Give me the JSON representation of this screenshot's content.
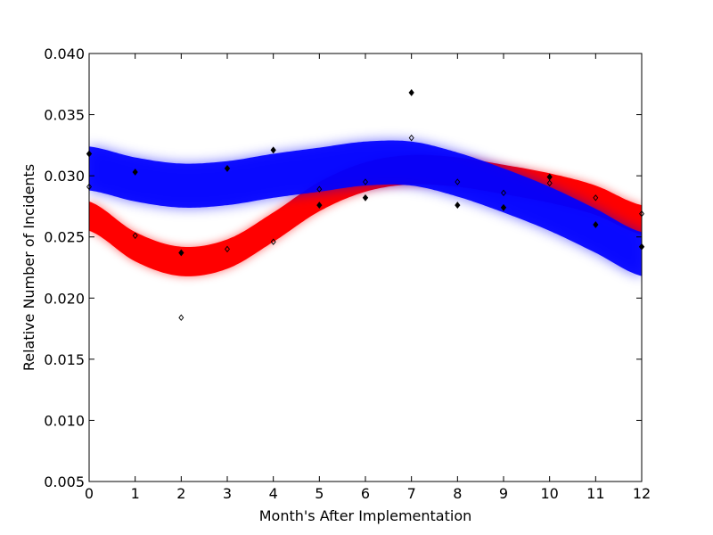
{
  "chart_data": {
    "type": "scatter",
    "xlabel": "Month's After Implementation",
    "ylabel": "Relative Number of Incidents",
    "xlim": [
      0,
      12
    ],
    "ylim": [
      0.005,
      0.04
    ],
    "xticks": [
      "0",
      "1",
      "2",
      "3",
      "4",
      "5",
      "6",
      "7",
      "8",
      "9",
      "10",
      "11",
      "12"
    ],
    "yticks": [
      "0.005",
      "0.010",
      "0.015",
      "0.020",
      "0.025",
      "0.030",
      "0.035",
      "0.040"
    ],
    "xtick_values": [
      0,
      1,
      2,
      3,
      4,
      5,
      6,
      7,
      8,
      9,
      10,
      11,
      12
    ],
    "ytick_values": [
      0.005,
      0.01,
      0.015,
      0.02,
      0.025,
      0.03,
      0.035,
      0.04
    ],
    "grid": false,
    "series": [
      {
        "marker": "filled-diamond",
        "color": "#000000",
        "x": [
          0,
          1,
          2,
          3,
          4,
          5,
          6,
          7,
          8,
          9,
          10,
          11,
          12
        ],
        "y": [
          0.0318,
          0.0303,
          0.0237,
          0.0306,
          0.0321,
          0.0276,
          0.0282,
          0.0368,
          0.0276,
          0.0274,
          0.0299,
          0.026,
          0.0242
        ]
      },
      {
        "marker": "open-diamond",
        "color": "#000000",
        "x": [
          0,
          1,
          2,
          3,
          4,
          5,
          6,
          7,
          8,
          9,
          10,
          11,
          12
        ],
        "y": [
          0.0291,
          0.0251,
          0.0184,
          0.024,
          0.0246,
          0.0289,
          0.0295,
          0.0331,
          0.0295,
          0.0286,
          0.0294,
          0.0282,
          0.0269
        ]
      }
    ],
    "bands": [
      {
        "color": "#ff0000",
        "x": [
          0,
          1,
          2,
          3,
          4,
          5,
          6,
          7,
          8,
          9,
          10,
          11,
          12
        ],
        "y_mid": [
          0.0267,
          0.0242,
          0.023,
          0.0236,
          0.0258,
          0.0283,
          0.0299,
          0.0305,
          0.0303,
          0.0297,
          0.029,
          0.028,
          0.0264
        ],
        "half_width": 0.0012
      },
      {
        "color": "#0000ff",
        "x": [
          0,
          1,
          2,
          3,
          4,
          5,
          6,
          7,
          8,
          9,
          10,
          11,
          12
        ],
        "y_mid": [
          0.0306,
          0.0297,
          0.0292,
          0.0294,
          0.03,
          0.0305,
          0.031,
          0.031,
          0.0301,
          0.0288,
          0.0273,
          0.0255,
          0.0236
        ],
        "half_width": 0.0018
      }
    ]
  }
}
